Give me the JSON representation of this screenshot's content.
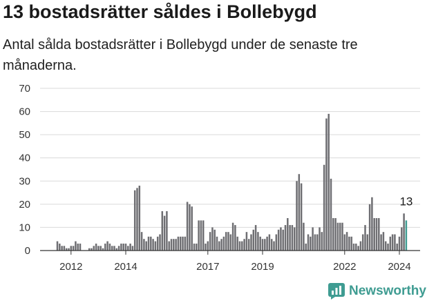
{
  "header": {
    "title": "13 bostadsrätter såldes i Bollebygd",
    "subtitle": "Antal sålda bostadsrätter i Bollebygd under de senaste tre månaderna."
  },
  "brand": {
    "name": "Newsworthy",
    "color": "#3f9c92",
    "icon": "newsworthy-chart-icon"
  },
  "colors": {
    "bar": "#6e6e72",
    "highlight": "#3f9c92",
    "grid": "#d9d9d9"
  },
  "chart_data": {
    "type": "bar",
    "title": "13 bostadsrätter såldes i Bollebygd",
    "subtitle": "Antal sålda bostadsrätter i Bollebygd under de senaste tre månaderna.",
    "xlabel": "",
    "ylabel": "",
    "ylim": [
      0,
      70
    ],
    "yticks": [
      0,
      10,
      20,
      30,
      40,
      50,
      60,
      70
    ],
    "xticks": [
      {
        "label": "2012",
        "index": 6
      },
      {
        "label": "2014",
        "index": 30
      },
      {
        "label": "2017",
        "index": 66
      },
      {
        "label": "2019",
        "index": 90
      },
      {
        "label": "2022",
        "index": 126
      },
      {
        "label": "2024",
        "index": 150
      }
    ],
    "grid": true,
    "legend": "none",
    "start": "2011-07",
    "frequency": "monthly",
    "highlight_last": true,
    "last_label": "13",
    "values": [
      4,
      3,
      2,
      2,
      1,
      1,
      2,
      2,
      4,
      3,
      3,
      0,
      0,
      0,
      1,
      1,
      2,
      3,
      2,
      2,
      1,
      3,
      4,
      3,
      2,
      2,
      1,
      2,
      3,
      3,
      3,
      2,
      3,
      2,
      26,
      27,
      28,
      8,
      5,
      4,
      6,
      6,
      5,
      4,
      6,
      7,
      17,
      15,
      17,
      4,
      5,
      5,
      5,
      6,
      6,
      6,
      6,
      21,
      20,
      19,
      3,
      3,
      13,
      13,
      13,
      3,
      4,
      8,
      10,
      9,
      6,
      4,
      5,
      6,
      8,
      8,
      7,
      12,
      11,
      6,
      4,
      4,
      5,
      8,
      5,
      7,
      9,
      11,
      8,
      6,
      5,
      5,
      6,
      7,
      5,
      4,
      7,
      9,
      10,
      9,
      11,
      14,
      11,
      11,
      10,
      30,
      33,
      29,
      12,
      3,
      7,
      6,
      10,
      7,
      7,
      10,
      8,
      37,
      57,
      59,
      31,
      14,
      14,
      12,
      12,
      12,
      7,
      8,
      6,
      6,
      3,
      3,
      2,
      4,
      7,
      11,
      7,
      20,
      23,
      14,
      14,
      14,
      7,
      8,
      4,
      3,
      6,
      7,
      7,
      3,
      6,
      10,
      16,
      13
    ]
  }
}
